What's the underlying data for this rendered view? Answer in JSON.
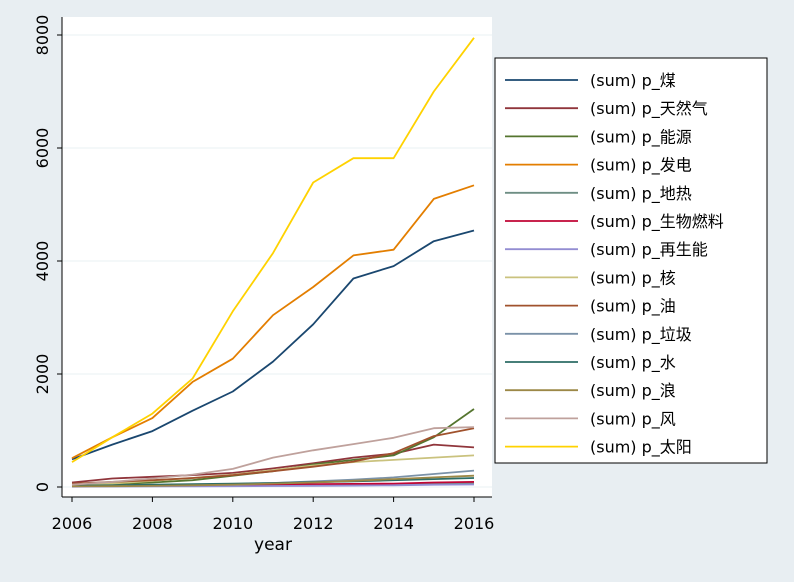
{
  "chart_data": {
    "type": "line",
    "title": "",
    "xlabel": "year",
    "ylabel": "",
    "xlim": [
      2006,
      2016
    ],
    "ylim": [
      0,
      8000
    ],
    "x_ticks": [
      2006,
      2008,
      2010,
      2012,
      2014,
      2016
    ],
    "y_ticks": [
      0,
      2000,
      4000,
      6000,
      8000
    ],
    "grid": "horizontal",
    "legend": "right",
    "x": [
      2006,
      2007,
      2008,
      2009,
      2010,
      2011,
      2012,
      2013,
      2014,
      2015,
      2016
    ],
    "series": [
      {
        "name": "(sum) p_煤",
        "color": "#1a476f",
        "values": [
          490,
          750,
          990,
          1350,
          1690,
          2220,
          2880,
          3690,
          3910,
          4350,
          4540
        ]
      },
      {
        "name": "(sum) p_天然气",
        "color": "#90353b",
        "values": [
          80,
          150,
          180,
          210,
          250,
          330,
          420,
          520,
          590,
          750,
          700
        ]
      },
      {
        "name": "(sum) p_能源",
        "color": "#55752f",
        "values": [
          20,
          50,
          80,
          120,
          200,
          280,
          400,
          480,
          560,
          880,
          1380
        ]
      },
      {
        "name": "(sum) p_发电",
        "color": "#e37e00",
        "values": [
          510,
          880,
          1220,
          1860,
          2270,
          3040,
          3540,
          4100,
          4200,
          5100,
          5340
        ]
      },
      {
        "name": "(sum) p_地热",
        "color": "#6e8e84",
        "values": [
          10,
          12,
          15,
          18,
          22,
          26,
          32,
          40,
          50,
          60,
          70
        ]
      },
      {
        "name": "(sum) p_生物燃料",
        "color": "#c10534",
        "values": [
          15,
          20,
          25,
          30,
          40,
          45,
          50,
          55,
          60,
          80,
          90
        ]
      },
      {
        "name": "(sum) p_再生能",
        "color": "#938dd2",
        "values": [
          5,
          8,
          10,
          12,
          15,
          18,
          22,
          25,
          30,
          40,
          45
        ]
      },
      {
        "name": "(sum) p_核",
        "color": "#cac27e",
        "values": [
          30,
          60,
          110,
          160,
          220,
          300,
          380,
          440,
          480,
          520,
          560
        ]
      },
      {
        "name": "(sum) p_油",
        "color": "#a0522d",
        "values": [
          60,
          90,
          120,
          160,
          210,
          280,
          360,
          450,
          600,
          900,
          1040
        ]
      },
      {
        "name": "(sum) p_垃圾",
        "color": "#7b92a8",
        "values": [
          20,
          25,
          30,
          40,
          50,
          70,
          100,
          130,
          170,
          230,
          290
        ]
      },
      {
        "name": "(sum) p_水",
        "color": "#2d6d66",
        "values": [
          25,
          30,
          40,
          50,
          60,
          70,
          85,
          100,
          120,
          140,
          160
        ]
      },
      {
        "name": "(sum) p_浪",
        "color": "#9c8847",
        "values": [
          10,
          15,
          20,
          30,
          40,
          60,
          80,
          110,
          140,
          170,
          200
        ]
      },
      {
        "name": "(sum) p_风",
        "color": "#bfa19c",
        "values": [
          40,
          90,
          150,
          220,
          320,
          520,
          650,
          760,
          870,
          1040,
          1060
        ]
      },
      {
        "name": "(sum) p_太阳",
        "color": "#ffd200",
        "values": [
          440,
          880,
          1300,
          1920,
          3110,
          4140,
          5390,
          5820,
          5820,
          7000,
          7950
        ]
      }
    ]
  }
}
